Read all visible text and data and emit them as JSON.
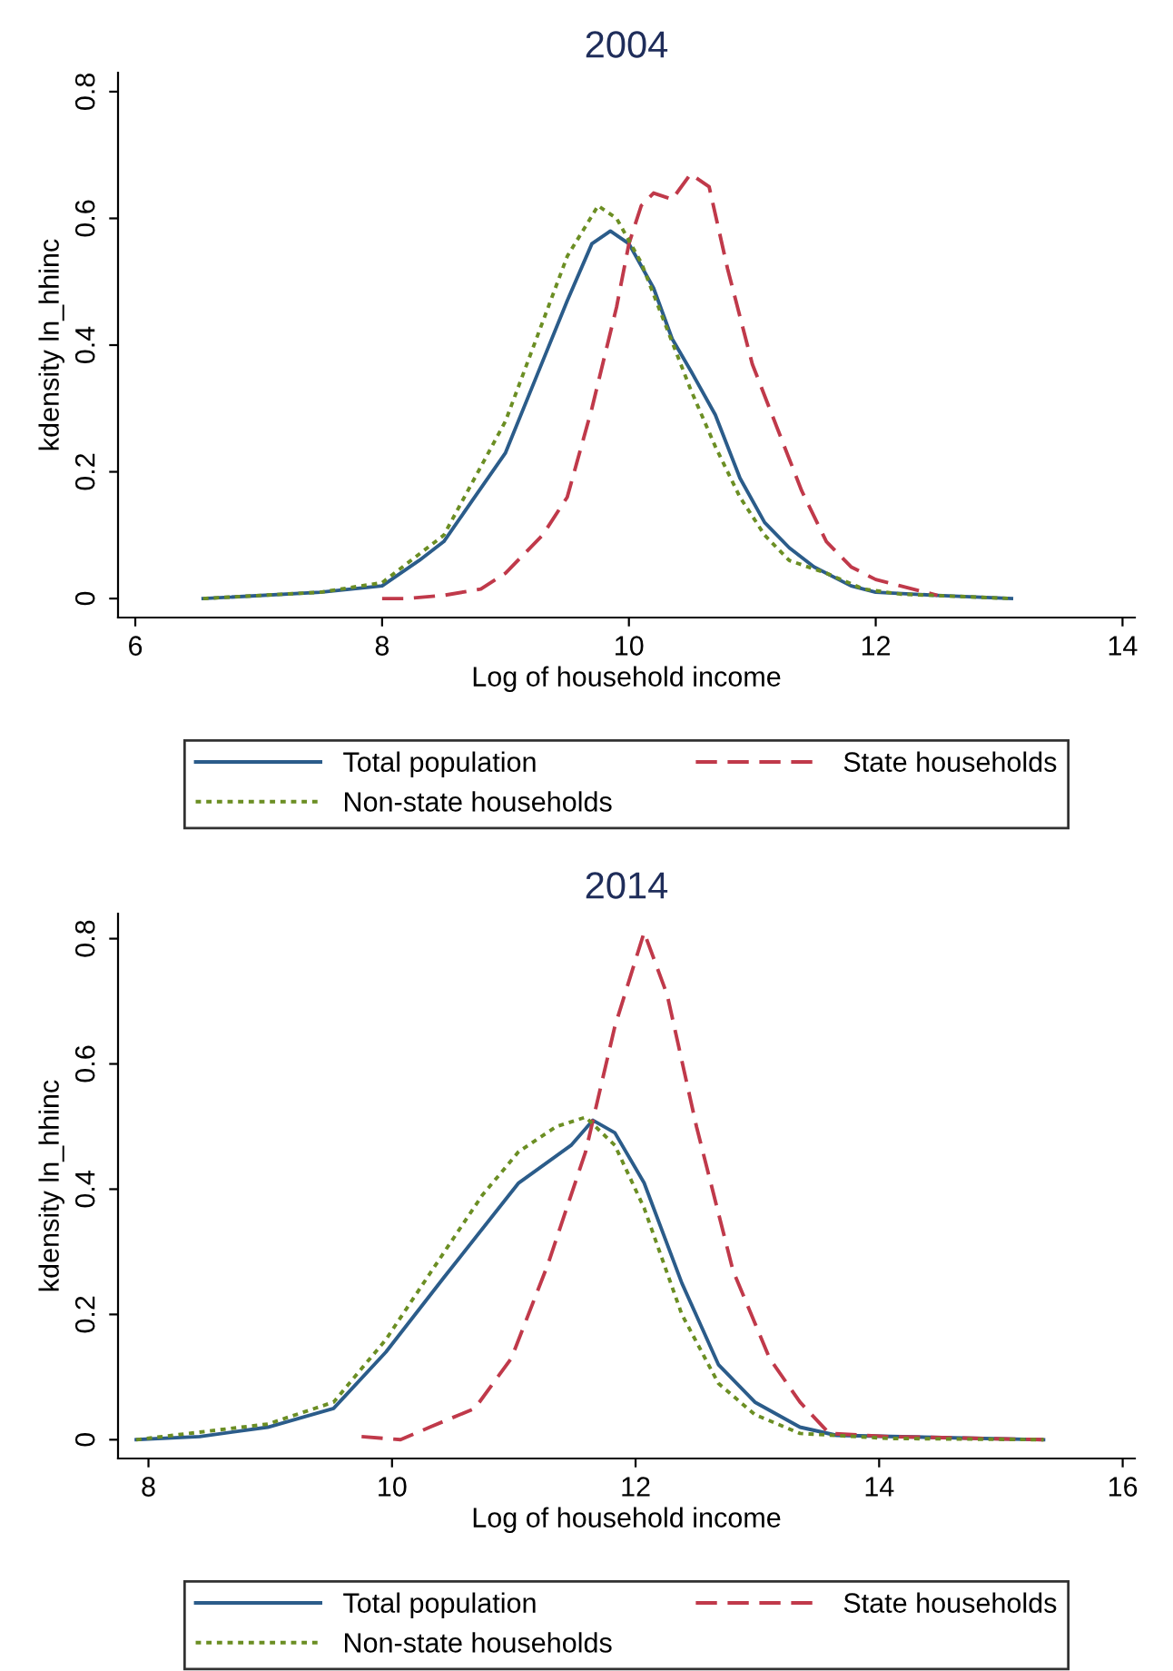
{
  "chart_data": [
    {
      "type": "line",
      "title": "2004",
      "xlabel": "Log of household income",
      "ylabel": "kdensity ln_hhinc",
      "xlim": [
        5.86,
        14.1
      ],
      "xticks": [
        6,
        8,
        10,
        12,
        14
      ],
      "ylim": [
        -0.03,
        0.83
      ],
      "yticks": [
        0,
        0.2,
        0.4,
        0.6,
        0.8
      ],
      "grid": false,
      "legend": "bottom",
      "series": [
        {
          "name": "Total population",
          "color": "#2b5c8a",
          "line_style": "solid",
          "x": [
            6.55,
            7.5,
            8.0,
            8.3,
            8.5,
            8.75,
            9.0,
            9.25,
            9.5,
            9.7,
            9.85,
            10.0,
            10.2,
            10.35,
            10.5,
            10.7,
            10.9,
            11.1,
            11.3,
            11.5,
            11.8,
            12.0,
            12.5,
            13.1
          ],
          "values": [
            0,
            0.01,
            0.02,
            0.06,
            0.09,
            0.16,
            0.23,
            0.35,
            0.47,
            0.56,
            0.58,
            0.56,
            0.49,
            0.41,
            0.36,
            0.29,
            0.19,
            0.12,
            0.08,
            0.05,
            0.02,
            0.01,
            0.005,
            0
          ]
        },
        {
          "name": "State households",
          "color": "#c0394a",
          "line_style": "dashed",
          "x": [
            8.0,
            8.2,
            8.5,
            8.8,
            9.0,
            9.3,
            9.5,
            9.7,
            9.9,
            10.0,
            10.1,
            10.2,
            10.35,
            10.5,
            10.65,
            10.8,
            11.0,
            11.2,
            11.4,
            11.6,
            11.8,
            12.0,
            12.2,
            12.5
          ],
          "values": [
            0,
            0,
            0.005,
            0.015,
            0.04,
            0.1,
            0.16,
            0.3,
            0.46,
            0.56,
            0.62,
            0.64,
            0.63,
            0.67,
            0.65,
            0.52,
            0.37,
            0.27,
            0.17,
            0.09,
            0.05,
            0.03,
            0.02,
            0.005
          ]
        },
        {
          "name": "Non-state households",
          "color": "#6b8e23",
          "line_style": "dotted",
          "x": [
            6.55,
            7.5,
            8.0,
            8.3,
            8.5,
            8.75,
            9.0,
            9.25,
            9.5,
            9.75,
            9.9,
            10.1,
            10.3,
            10.5,
            10.7,
            10.9,
            11.1,
            11.3,
            11.6,
            11.9,
            12.2,
            13.1
          ],
          "values": [
            0,
            0.01,
            0.025,
            0.07,
            0.1,
            0.19,
            0.28,
            0.41,
            0.54,
            0.62,
            0.6,
            0.53,
            0.43,
            0.33,
            0.24,
            0.16,
            0.1,
            0.06,
            0.04,
            0.015,
            0.007,
            0
          ]
        }
      ]
    },
    {
      "type": "line",
      "title": "2014",
      "xlabel": "Log of household income",
      "ylabel": "kdensity ln_hhinc",
      "xlim": [
        7.75,
        16.1
      ],
      "xticks": [
        8,
        10,
        12,
        14,
        16
      ],
      "ylim": [
        -0.03,
        0.84
      ],
      "yticks": [
        0,
        0.2,
        0.4,
        0.6,
        0.8
      ],
      "grid": false,
      "legend": "bottom",
      "series": [
        {
          "name": "Total population",
          "color": "#2b5c8a",
          "line_style": "solid",
          "x": [
            7.9,
            8.42,
            8.98,
            9.52,
            9.95,
            10.43,
            11.04,
            11.47,
            11.65,
            11.83,
            12.07,
            12.38,
            12.68,
            12.98,
            13.35,
            13.65,
            15.35
          ],
          "values": [
            0,
            0.005,
            0.02,
            0.05,
            0.14,
            0.26,
            0.41,
            0.47,
            0.51,
            0.49,
            0.41,
            0.25,
            0.12,
            0.06,
            0.02,
            0.007,
            0
          ]
        },
        {
          "name": "State households",
          "color": "#c0394a",
          "line_style": "dashed",
          "x": [
            9.75,
            10.07,
            10.31,
            10.68,
            10.98,
            11.28,
            11.59,
            11.83,
            12.07,
            12.26,
            12.5,
            12.8,
            13.1,
            13.35,
            13.59,
            14.08,
            15.35
          ],
          "values": [
            0.005,
            0,
            0.02,
            0.05,
            0.13,
            0.28,
            0.46,
            0.66,
            0.81,
            0.71,
            0.5,
            0.27,
            0.13,
            0.06,
            0.01,
            0.005,
            0
          ]
        },
        {
          "name": "Non-state households",
          "color": "#6b8e23",
          "line_style": "dotted",
          "x": [
            7.9,
            8.98,
            9.52,
            9.95,
            10.43,
            10.74,
            11.04,
            11.35,
            11.59,
            11.83,
            12.07,
            12.38,
            12.68,
            12.98,
            13.35,
            14.08,
            15.35
          ],
          "values": [
            0,
            0.025,
            0.06,
            0.16,
            0.3,
            0.39,
            0.46,
            0.5,
            0.515,
            0.47,
            0.37,
            0.2,
            0.09,
            0.04,
            0.01,
            0.002,
            0
          ]
        }
      ]
    }
  ]
}
